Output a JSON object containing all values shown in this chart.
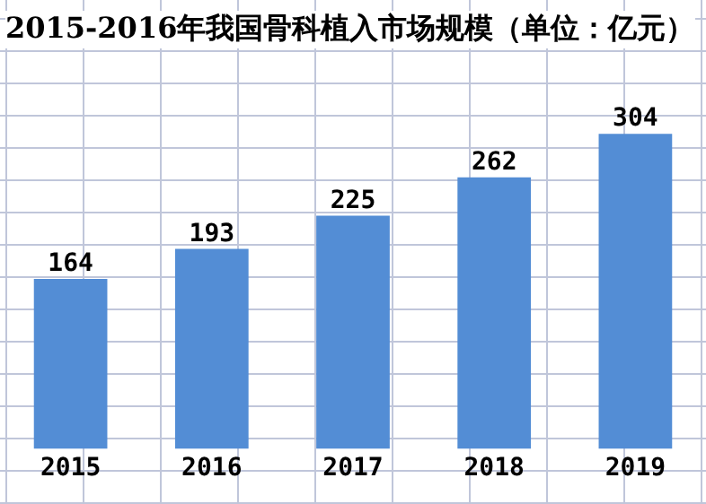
{
  "chart_data": {
    "type": "bar",
    "title": "2015-2016年我国骨科植入市场规模（单位：亿元）",
    "categories": [
      "2015",
      "2016",
      "2017",
      "2018",
      "2019"
    ],
    "values": [
      164,
      193,
      225,
      262,
      304
    ],
    "color": "#538dd5",
    "data_labels": true
  }
}
